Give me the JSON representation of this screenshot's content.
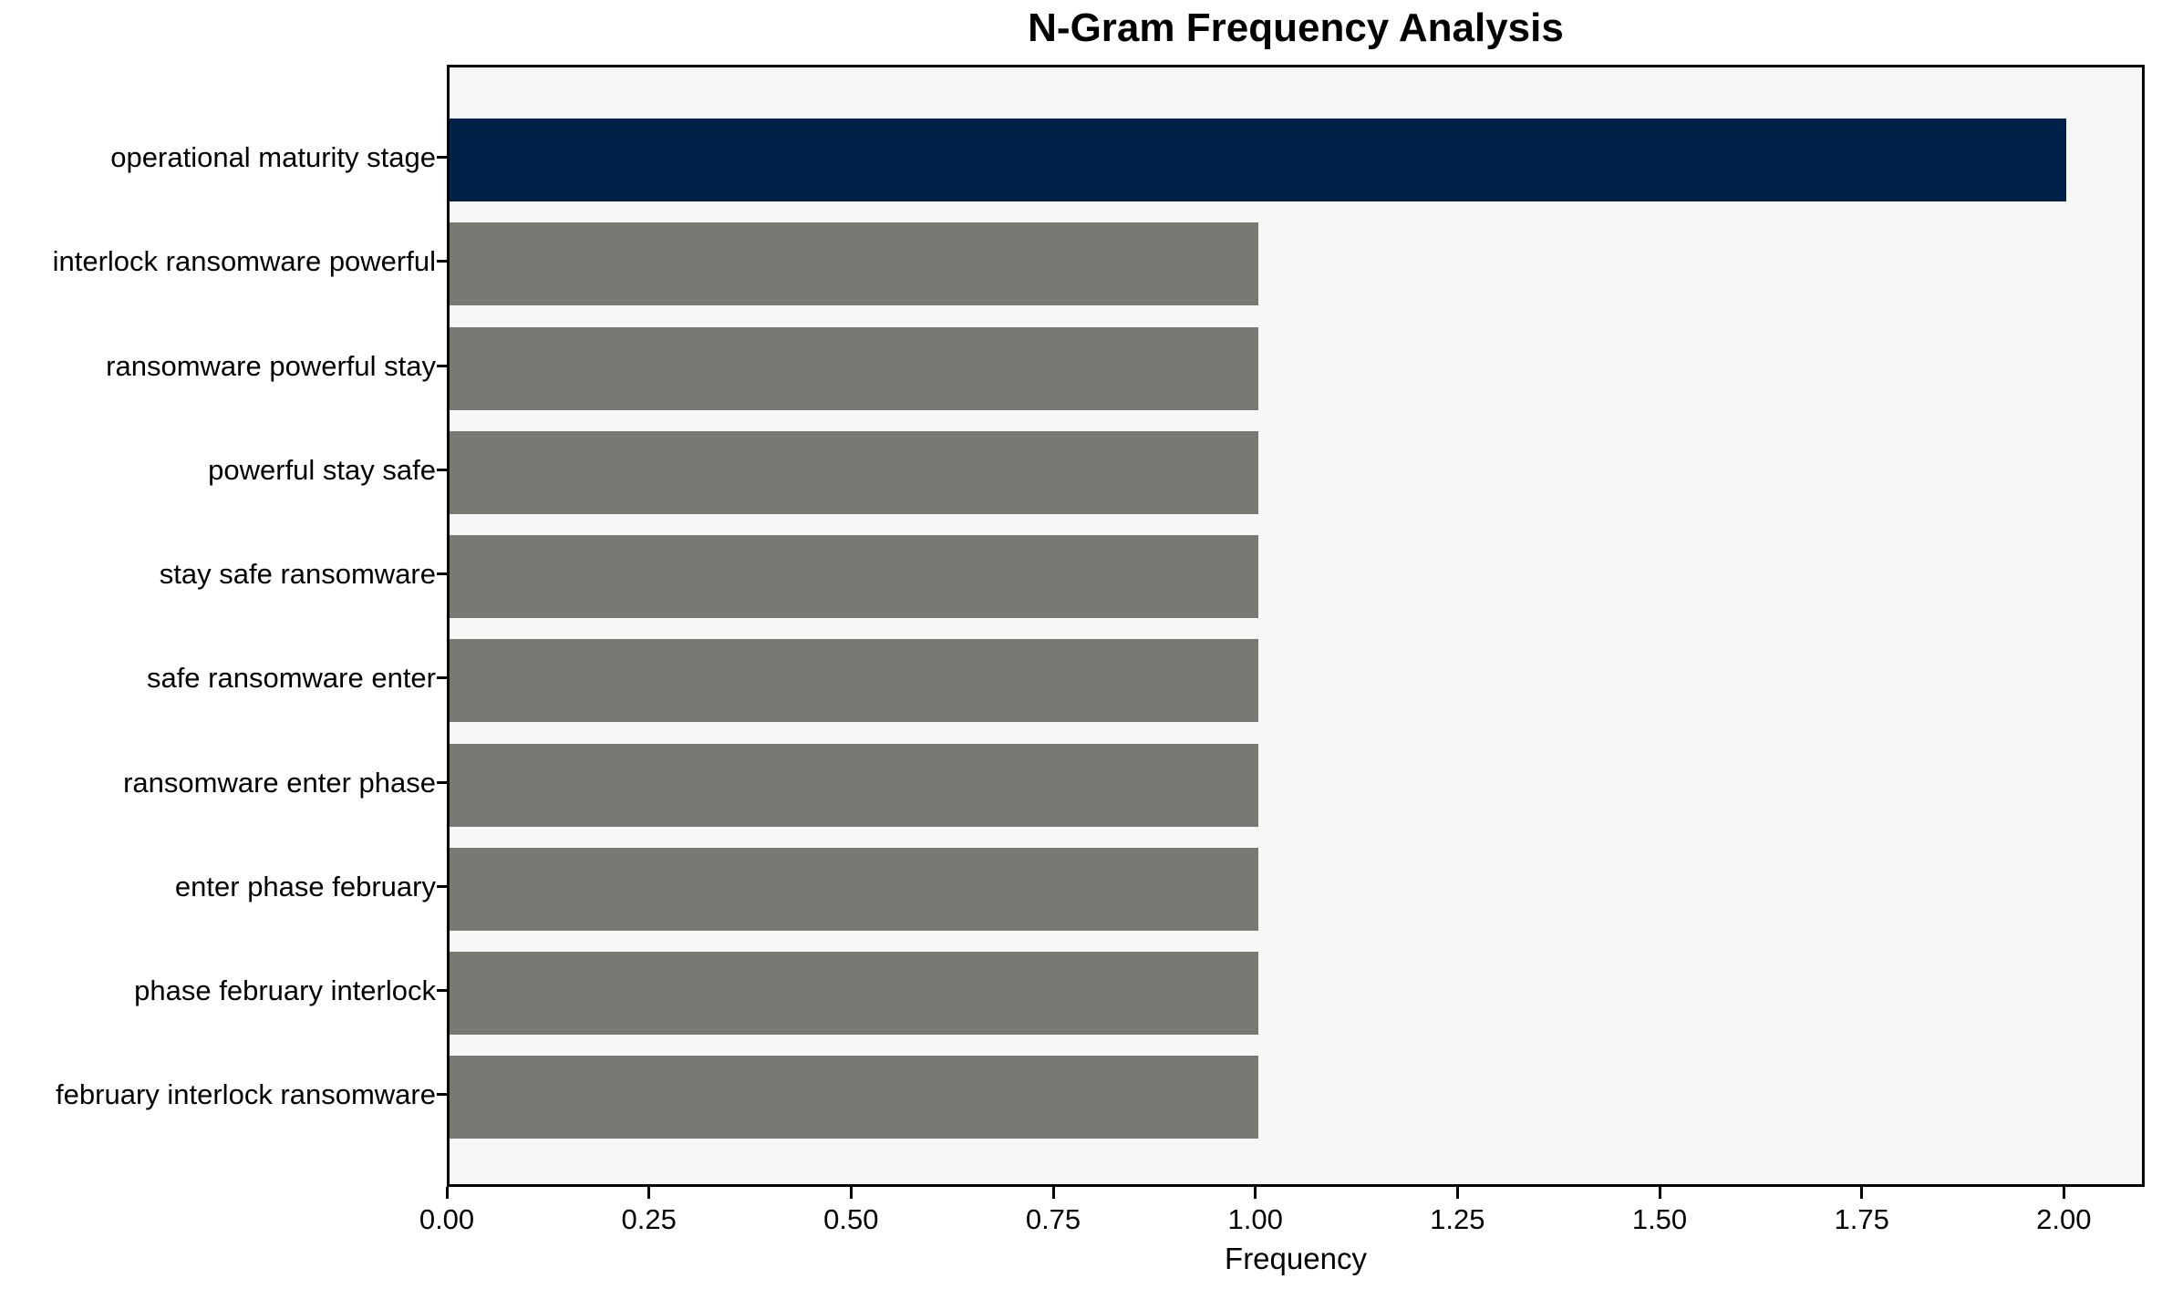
{
  "chart": {
    "title": "N-Gram Frequency Analysis",
    "xlabel": "Frequency"
  },
  "chart_data": {
    "type": "bar",
    "orientation": "horizontal",
    "title": "N-Gram Frequency Analysis",
    "xlabel": "Frequency",
    "ylabel": "",
    "categories": [
      "operational maturity stage",
      "interlock ransomware powerful",
      "ransomware powerful stay",
      "powerful stay safe",
      "stay safe ransomware",
      "safe ransomware enter",
      "ransomware enter phase",
      "enter phase february",
      "phase february interlock",
      "february interlock ransomware"
    ],
    "values": [
      2,
      1,
      1,
      1,
      1,
      1,
      1,
      1,
      1,
      1
    ],
    "bar_colors": [
      "#022149",
      "#7a7873",
      "#7a7873",
      "#7a7873",
      "#7a7873",
      "#7a7873",
      "#7a7873",
      "#7a7873",
      "#7a7873",
      "#7a7873"
    ],
    "xlim": [
      0,
      2.1
    ],
    "xticks": [
      0.0,
      0.25,
      0.5,
      0.75,
      1.0,
      1.25,
      1.5,
      1.75,
      2.0
    ],
    "xtick_labels": [
      "0.00",
      "0.25",
      "0.50",
      "0.75",
      "1.00",
      "1.25",
      "1.50",
      "1.75",
      "2.00"
    ],
    "grid": false,
    "legend": "none",
    "colors": {
      "highlight_bar": "#022149",
      "default_bar": "#7a7873",
      "plot_background": "#f7f7f7",
      "figure_background": "#ffffff",
      "spine": "#000000",
      "text": "#000000"
    }
  }
}
